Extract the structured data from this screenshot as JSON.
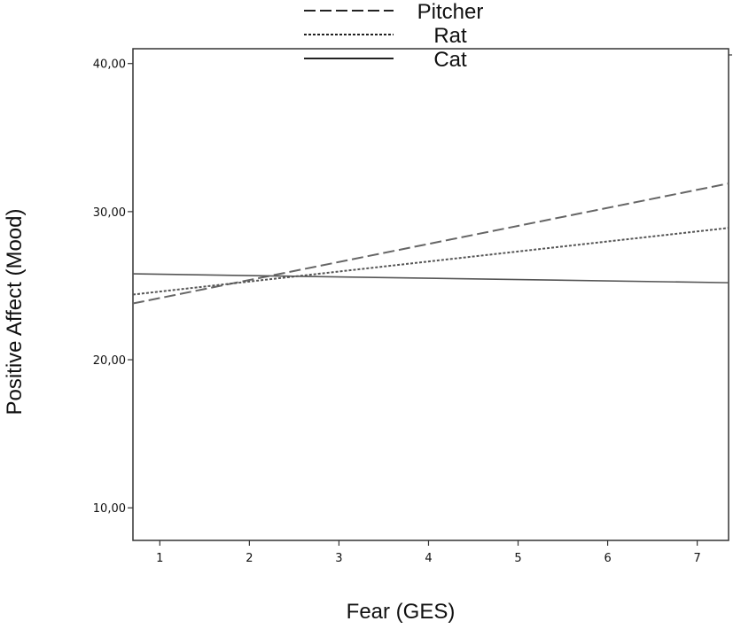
{
  "chart_data": {
    "type": "line",
    "title": "",
    "xlabel": "Fear (GES)",
    "ylabel": "Positive Affect (Mood)",
    "xlim": [
      0.7,
      7.35
    ],
    "ylim": [
      7.8,
      41.0
    ],
    "xticks": [
      {
        "value": 1,
        "label": "1"
      },
      {
        "value": 2,
        "label": "2"
      },
      {
        "value": 3,
        "label": "3"
      },
      {
        "value": 4,
        "label": "4"
      },
      {
        "value": 5,
        "label": "5"
      },
      {
        "value": 6,
        "label": "6"
      },
      {
        "value": 7,
        "label": "7"
      }
    ],
    "yticks": [
      {
        "value": 10,
        "label": "10,00"
      },
      {
        "value": 20,
        "label": "20,00"
      },
      {
        "value": 30,
        "label": "30,00"
      },
      {
        "value": 40,
        "label": "40,00"
      }
    ],
    "legend_position": "top-center",
    "grid": false,
    "series": [
      {
        "name": "Pitcher",
        "style": "dashed",
        "color": "#666666",
        "x": [
          0.7,
          7.35
        ],
        "y": [
          23.8,
          31.9
        ]
      },
      {
        "name": "Rat",
        "style": "dotted",
        "color": "#555555",
        "x": [
          0.7,
          7.35
        ],
        "y": [
          24.4,
          28.9
        ]
      },
      {
        "name": "Cat",
        "style": "solid",
        "color": "#555555",
        "x": [
          0.7,
          7.35
        ],
        "y": [
          25.8,
          25.2
        ]
      }
    ]
  }
}
